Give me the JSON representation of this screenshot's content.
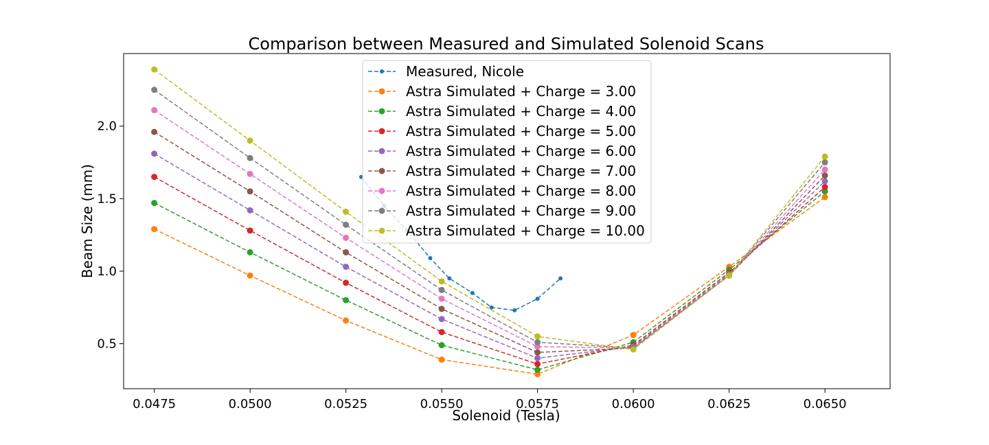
{
  "chart_data": {
    "type": "line",
    "title": "Comparison between Measured and Simulated Solenoid Scans",
    "xlabel": "Solenoid (Tesla)",
    "ylabel": "Beam Size (mm)",
    "xlim": [
      0.0467,
      0.0667
    ],
    "ylim": [
      0.19,
      2.5
    ],
    "xticks": [
      0.0475,
      0.05,
      0.0525,
      0.055,
      0.0575,
      0.06,
      0.0625,
      0.065
    ],
    "xtick_labels": [
      "0.0475",
      "0.0500",
      "0.0525",
      "0.0550",
      "0.0575",
      "0.0600",
      "0.0625",
      "0.0650"
    ],
    "yticks": [
      0.5,
      1.0,
      1.5,
      2.0
    ],
    "ytick_labels": [
      "0.5",
      "1.0",
      "1.5",
      "2.0"
    ],
    "grid": false,
    "legend_position": "top-center",
    "series": [
      {
        "name": "Measured, Nicole",
        "color": "#1f77b4",
        "marker": "small",
        "x": [
          0.0529,
          0.0535,
          0.0541,
          0.0547,
          0.0552,
          0.0558,
          0.0563,
          0.0569,
          0.0575,
          0.0581
        ],
        "y": [
          1.65,
          1.45,
          1.28,
          1.09,
          0.95,
          0.85,
          0.75,
          0.73,
          0.81,
          0.95
        ]
      },
      {
        "name": "Astra Simulated + Charge = 3.00",
        "color": "#ff7f0e",
        "x": [
          0.0475,
          0.05,
          0.0525,
          0.055,
          0.0575,
          0.06,
          0.0625,
          0.065
        ],
        "y": [
          1.29,
          0.97,
          0.66,
          0.39,
          0.29,
          0.56,
          1.03,
          1.51
        ]
      },
      {
        "name": "Astra Simulated + Charge = 4.00",
        "color": "#2ca02c",
        "x": [
          0.0475,
          0.05,
          0.0525,
          0.055,
          0.0575,
          0.06,
          0.0625,
          0.065
        ],
        "y": [
          1.47,
          1.13,
          0.8,
          0.49,
          0.32,
          0.51,
          1.01,
          1.55
        ]
      },
      {
        "name": "Astra Simulated + Charge = 5.00",
        "color": "#d62728",
        "x": [
          0.0475,
          0.05,
          0.0525,
          0.055,
          0.0575,
          0.06,
          0.0625,
          0.065
        ],
        "y": [
          1.65,
          1.28,
          0.92,
          0.58,
          0.36,
          0.49,
          0.99,
          1.58
        ]
      },
      {
        "name": "Astra Simulated + Charge = 6.00",
        "color": "#9467bd",
        "x": [
          0.0475,
          0.05,
          0.0525,
          0.055,
          0.0575,
          0.06,
          0.0625,
          0.065
        ],
        "y": [
          1.81,
          1.42,
          1.03,
          0.67,
          0.4,
          0.48,
          0.98,
          1.62
        ]
      },
      {
        "name": "Astra Simulated + Charge = 7.00",
        "color": "#8c564b",
        "x": [
          0.0475,
          0.05,
          0.0525,
          0.055,
          0.0575,
          0.06,
          0.0625,
          0.065
        ],
        "y": [
          1.96,
          1.55,
          1.13,
          0.74,
          0.44,
          0.47,
          0.97,
          1.66
        ]
      },
      {
        "name": "Astra Simulated + Charge = 8.00",
        "color": "#e377c2",
        "x": [
          0.0475,
          0.05,
          0.0525,
          0.055,
          0.0575,
          0.06,
          0.0625,
          0.065
        ],
        "y": [
          2.11,
          1.67,
          1.23,
          0.81,
          0.48,
          0.47,
          0.97,
          1.7
        ]
      },
      {
        "name": "Astra Simulated + Charge = 9.00",
        "color": "#7f7f7f",
        "x": [
          0.0475,
          0.05,
          0.0525,
          0.055,
          0.0575,
          0.06,
          0.0625,
          0.065
        ],
        "y": [
          2.25,
          1.78,
          1.32,
          0.87,
          0.51,
          0.47,
          0.97,
          1.75
        ]
      },
      {
        "name": "Astra Simulated + Charge = 10.00",
        "color": "#bcbd22",
        "x": [
          0.0475,
          0.05,
          0.0525,
          0.055,
          0.0575,
          0.06,
          0.0625,
          0.065
        ],
        "y": [
          2.39,
          1.9,
          1.41,
          0.93,
          0.55,
          0.46,
          0.97,
          1.79
        ]
      }
    ]
  }
}
